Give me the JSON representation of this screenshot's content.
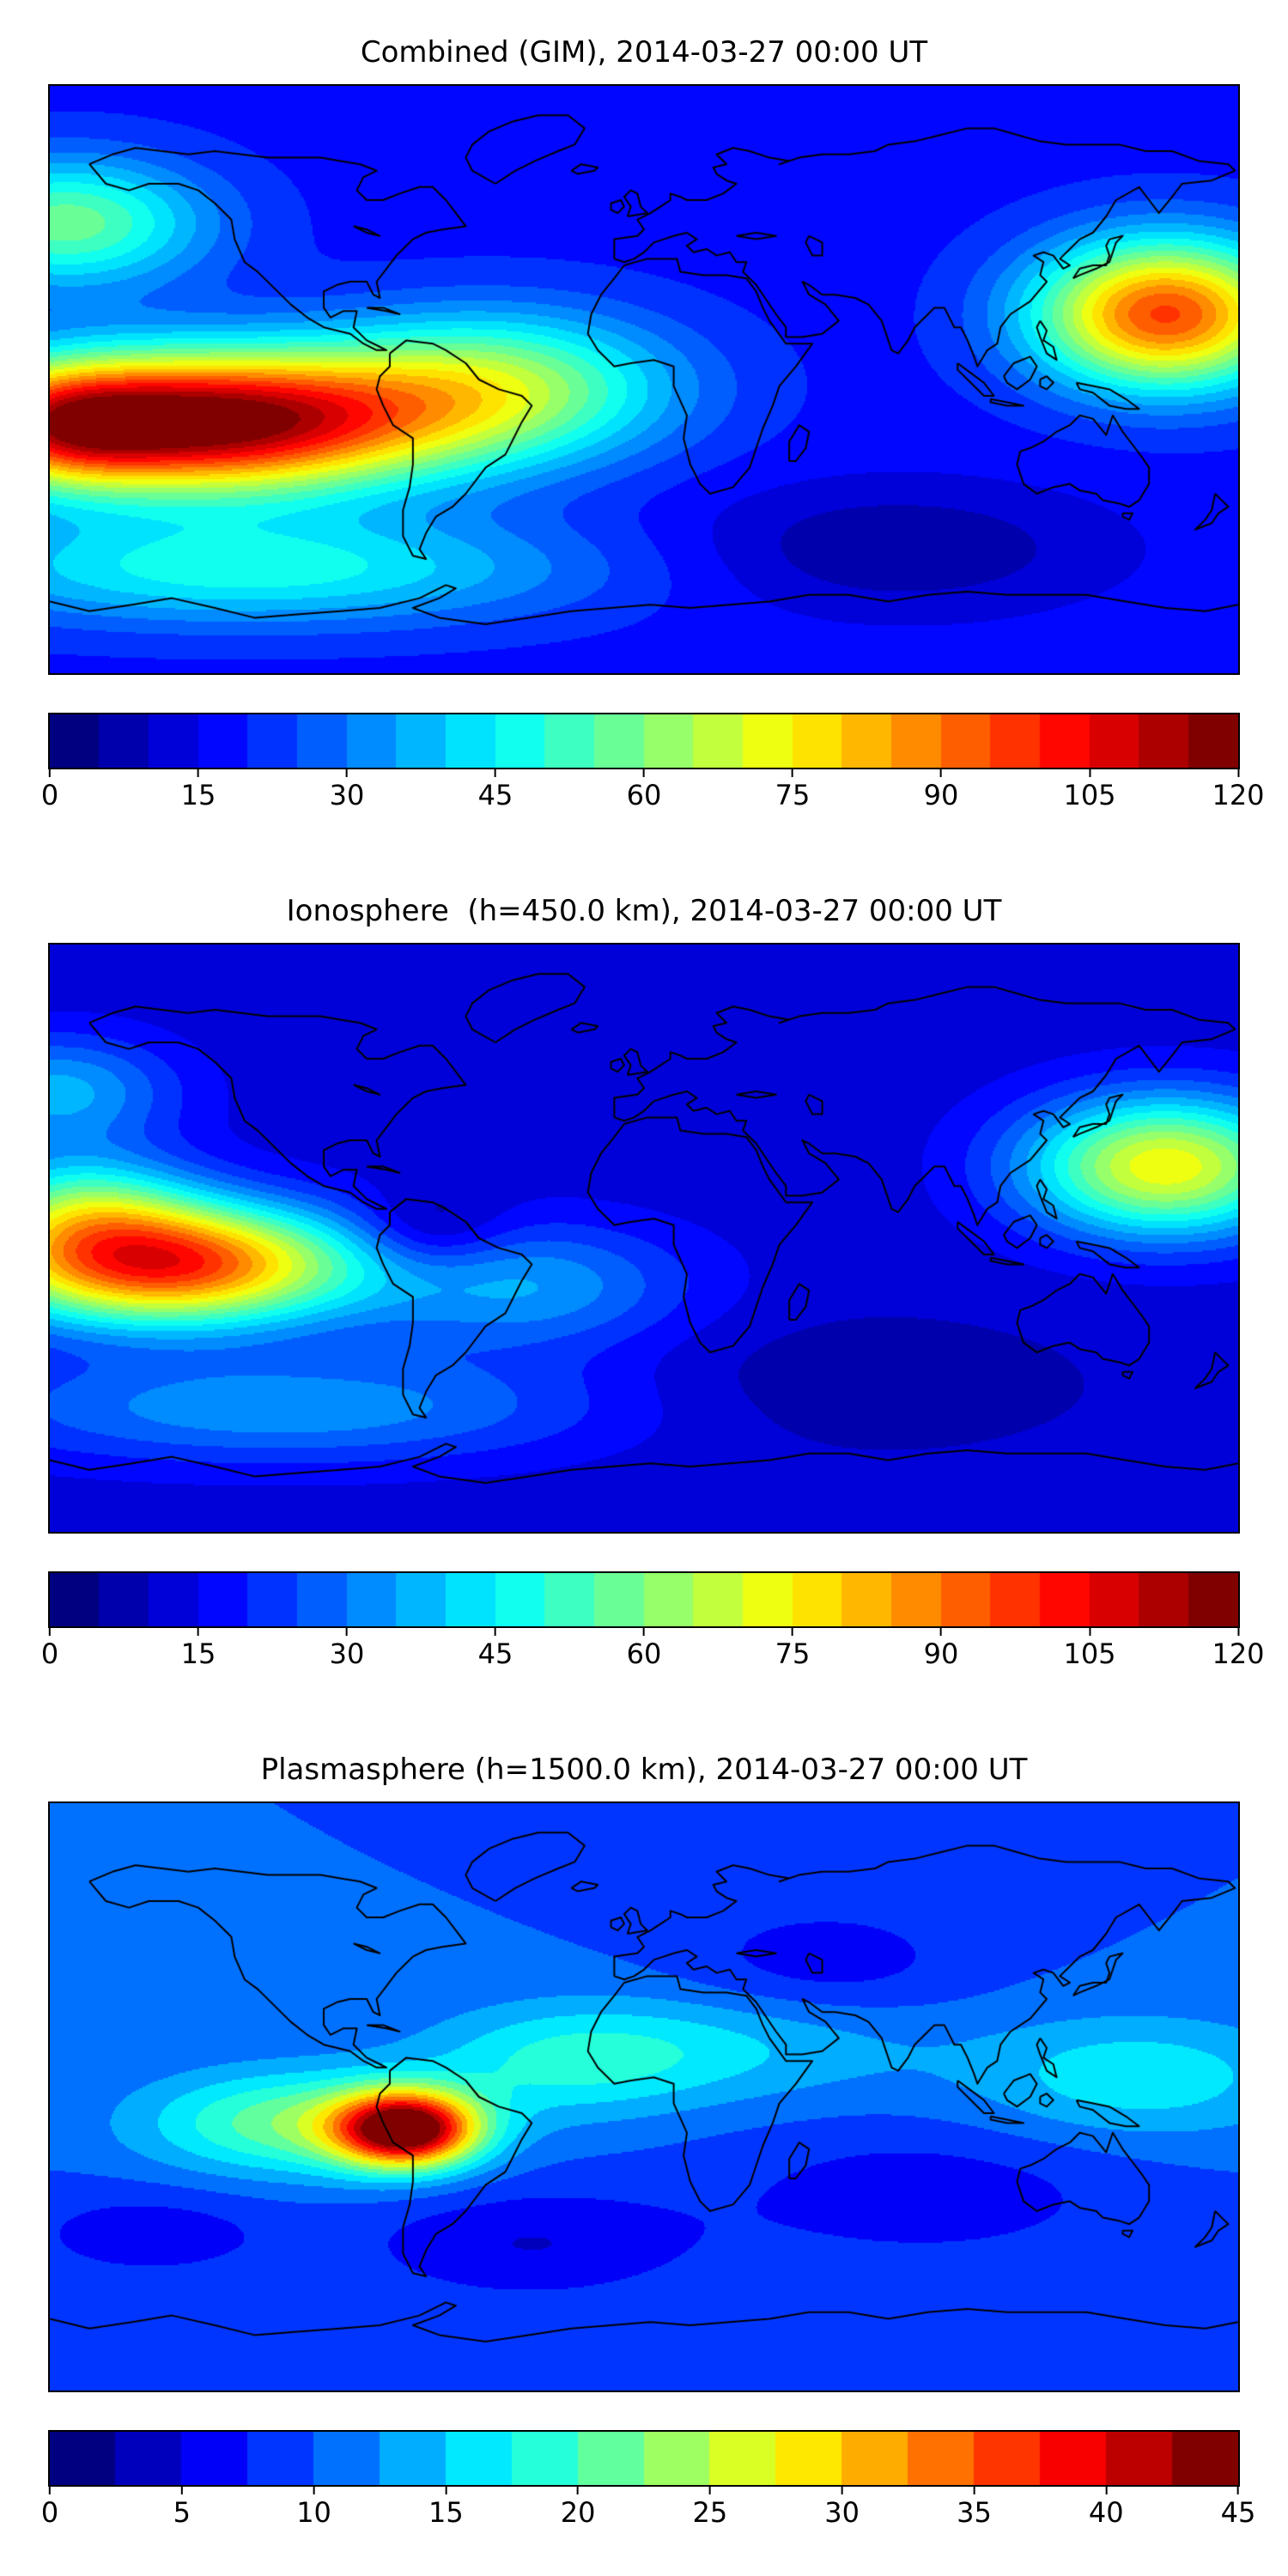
{
  "figure": {
    "background": "#ffffff",
    "text_color": "#000000",
    "coastline_color": "#000000",
    "colormap_name": "jet",
    "colormap_end_low": "#00007f",
    "colormap_end_high": "#7f0000"
  },
  "chart_data": [
    {
      "type": "heatmap",
      "subtype": "filled_contour_world_map",
      "title": "Combined (GIM), 2014-03-27 00:00 UT",
      "projection": "equirectangular",
      "lon_range": [
        -180,
        180
      ],
      "lat_range": [
        -90,
        90
      ],
      "colormap": "jet",
      "value_range": [
        0,
        120
      ],
      "contour_step": 5,
      "colorbar_ticks": [
        0,
        15,
        30,
        45,
        60,
        75,
        90,
        105,
        120
      ],
      "field": {
        "base": 18,
        "blobs": [
          {
            "lon": -135,
            "lat": -13,
            "sx": 50,
            "sy": 15,
            "amp": 105
          },
          {
            "lon": -176,
            "lat": -14,
            "sx": 20,
            "sy": 12,
            "amp": 30
          },
          {
            "lon": -45,
            "lat": -2,
            "sx": 38,
            "sy": 16,
            "amp": 42
          },
          {
            "lon": 158,
            "lat": 20,
            "sx": 28,
            "sy": 16,
            "amp": 78
          },
          {
            "lon": -175,
            "lat": 48,
            "sx": 30,
            "sy": 14,
            "amp": 40
          },
          {
            "lon": -120,
            "lat": -58,
            "sx": 70,
            "sy": 12,
            "amp": 30
          },
          {
            "lon": 75,
            "lat": -52,
            "sx": 45,
            "sy": 14,
            "amp": -13
          }
        ]
      },
      "notable_features": [
        {
          "label": "maximum over eastern Pacific west of South America",
          "approx_value": 120
        },
        {
          "label": "secondary maximum near Japan / west Pacific",
          "approx_value": 95
        },
        {
          "label": "minimum over southern Indian Ocean",
          "approx_value": 5
        }
      ]
    },
    {
      "type": "heatmap",
      "subtype": "filled_contour_world_map",
      "title": "Ionosphere  (h=450.0 km), 2014-03-27 00:00 UT",
      "projection": "equirectangular",
      "lon_range": [
        -180,
        180
      ],
      "lat_range": [
        -90,
        90
      ],
      "colormap": "jet",
      "value_range": [
        0,
        120
      ],
      "contour_step": 5,
      "colorbar_ticks": [
        0,
        15,
        30,
        45,
        60,
        75,
        90,
        105,
        120
      ],
      "field": {
        "base": 12,
        "blobs": [
          {
            "lon": -145,
            "lat": -8,
            "sx": 40,
            "sy": 13,
            "amp": 88
          },
          {
            "lon": -170,
            "lat": 10,
            "sx": 24,
            "sy": 12,
            "amp": 32
          },
          {
            "lon": 158,
            "lat": 22,
            "sx": 30,
            "sy": 15,
            "amp": 62
          },
          {
            "lon": -65,
            "lat": 2,
            "sx": 16,
            "sy": 9,
            "amp": -14
          },
          {
            "lon": -35,
            "lat": -15,
            "sx": 35,
            "sy": 14,
            "amp": 22
          },
          {
            "lon": -110,
            "lat": -52,
            "sx": 70,
            "sy": 12,
            "amp": 22
          },
          {
            "lon": 60,
            "lat": -45,
            "sx": 50,
            "sy": 15,
            "amp": -6
          },
          {
            "lon": -178,
            "lat": 45,
            "sx": 25,
            "sy": 12,
            "amp": 25
          }
        ]
      },
      "notable_features": [
        {
          "label": "maximum over eastern Pacific",
          "approx_value": 100
        },
        {
          "label": "secondary maximum near Japan",
          "approx_value": 75
        },
        {
          "label": "depleted patch over northern South America",
          "approx_value": 10
        }
      ]
    },
    {
      "type": "heatmap",
      "subtype": "filled_contour_world_map",
      "title": "Plasmasphere (h=1500.0 km), 2014-03-27 00:00 UT",
      "projection": "equirectangular",
      "lon_range": [
        -180,
        180
      ],
      "lat_range": [
        -90,
        90
      ],
      "colormap": "jet",
      "value_range": [
        0,
        45
      ],
      "contour_step": 2.5,
      "colorbar_ticks": [
        0,
        5,
        10,
        15,
        20,
        25,
        30,
        35,
        40,
        45
      ],
      "field": {
        "base": 10,
        "blobs": [
          {
            "lon": -72,
            "lat": -10,
            "sx": 15,
            "sy": 8,
            "amp": 34
          },
          {
            "lon": -105,
            "lat": -8,
            "sx": 32,
            "sy": 11,
            "amp": 12
          },
          {
            "lon": 150,
            "lat": 6,
            "sx": 35,
            "sy": 13,
            "amp": 7
          },
          {
            "lon": -25,
            "lat": 10,
            "sx": 30,
            "sy": 12,
            "amp": 6
          },
          {
            "lon": 20,
            "lat": 15,
            "sx": 45,
            "sy": 12,
            "amp": 5
          },
          {
            "lon": -35,
            "lat": -45,
            "sx": 35,
            "sy": 12,
            "amp": -5
          },
          {
            "lon": 85,
            "lat": -30,
            "sx": 45,
            "sy": 15,
            "amp": -4
          },
          {
            "lon": -150,
            "lat": -42,
            "sx": 28,
            "sy": 10,
            "amp": -4
          },
          {
            "lon": 55,
            "lat": 42,
            "sx": 30,
            "sy": 12,
            "amp": -4
          }
        ]
      },
      "notable_features": [
        {
          "label": "sharp maximum over Peru / western South America",
          "approx_value": 44
        },
        {
          "label": "broad low background over oceans",
          "approx_value": 10
        },
        {
          "label": "minima at southern mid-latitudes",
          "approx_value": 5
        }
      ]
    }
  ]
}
